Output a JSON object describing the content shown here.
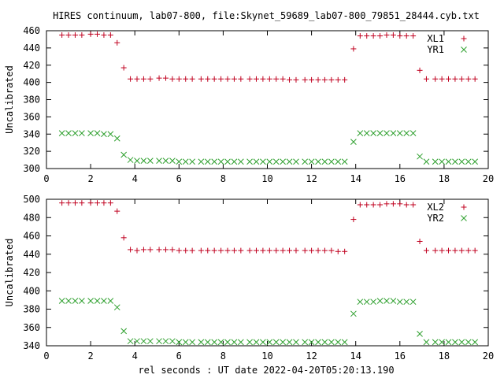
{
  "title": "HIRES continuum, lab07-800, file:Skynet_59689_lab07-800_79851_28444.cyb.txt",
  "xlabel": "rel seconds : UT date 2022-04-20T05:20:13.190",
  "colors": {
    "series_a": "#c0001f",
    "series_b": "#2fa02f"
  },
  "chart_data": [
    {
      "type": "scatter",
      "ylabel": "Uncalibrated",
      "xlim": [
        0,
        20
      ],
      "ylim": [
        300,
        460
      ],
      "xticks": [
        "0",
        "2",
        "4",
        "6",
        "8",
        "10",
        "12",
        "14",
        "16",
        "18",
        "20"
      ],
      "yticks": [
        "300",
        "320",
        "340",
        "360",
        "380",
        "400",
        "420",
        "440",
        "460"
      ],
      "legend_position": "top-right",
      "series": [
        {
          "name": "XL1",
          "marker": "plus",
          "x": [
            0.7,
            1.0,
            1.3,
            1.6,
            2.0,
            2.3,
            2.6,
            2.9,
            3.2,
            3.5,
            3.8,
            4.1,
            4.4,
            4.7,
            5.1,
            5.4,
            5.7,
            6.0,
            6.3,
            6.6,
            7.0,
            7.3,
            7.6,
            7.9,
            8.2,
            8.5,
            8.8,
            9.2,
            9.5,
            9.8,
            10.1,
            10.4,
            10.7,
            11.0,
            11.3,
            11.7,
            12.0,
            12.3,
            12.6,
            12.9,
            13.2,
            13.5,
            13.9,
            14.2,
            14.5,
            14.8,
            15.1,
            15.4,
            15.7,
            16.0,
            16.3,
            16.6,
            16.9,
            17.2,
            17.6,
            17.9,
            18.2,
            18.5,
            18.8,
            19.1,
            19.4
          ],
          "y": [
            455,
            455,
            455,
            455,
            456,
            456,
            455,
            455,
            446,
            417,
            404,
            404,
            404,
            404,
            405,
            405,
            404,
            404,
            404,
            404,
            404,
            404,
            404,
            404,
            404,
            404,
            404,
            404,
            404,
            404,
            404,
            404,
            404,
            403,
            403,
            403,
            403,
            403,
            403,
            403,
            403,
            403,
            439,
            454,
            454,
            454,
            454,
            455,
            455,
            454,
            454,
            454,
            414,
            404,
            404,
            404,
            404,
            404,
            404,
            404,
            404
          ]
        },
        {
          "name": "YR1",
          "marker": "cross",
          "x": [
            0.7,
            1.0,
            1.3,
            1.6,
            2.0,
            2.3,
            2.6,
            2.9,
            3.2,
            3.5,
            3.8,
            4.1,
            4.4,
            4.7,
            5.1,
            5.4,
            5.7,
            6.0,
            6.3,
            6.6,
            7.0,
            7.3,
            7.6,
            7.9,
            8.2,
            8.5,
            8.8,
            9.2,
            9.5,
            9.8,
            10.1,
            10.4,
            10.7,
            11.0,
            11.3,
            11.7,
            12.0,
            12.3,
            12.6,
            12.9,
            13.2,
            13.5,
            13.9,
            14.2,
            14.5,
            14.8,
            15.1,
            15.4,
            15.7,
            16.0,
            16.3,
            16.6,
            16.9,
            17.2,
            17.6,
            17.9,
            18.2,
            18.5,
            18.8,
            19.1,
            19.4
          ],
          "y": [
            341,
            341,
            341,
            341,
            341,
            341,
            340,
            340,
            335,
            316,
            310,
            309,
            309,
            309,
            309,
            309,
            309,
            308,
            308,
            308,
            308,
            308,
            308,
            308,
            308,
            308,
            308,
            308,
            308,
            308,
            308,
            308,
            308,
            308,
            308,
            308,
            308,
            308,
            308,
            308,
            308,
            308,
            331,
            341,
            341,
            341,
            341,
            341,
            341,
            341,
            341,
            341,
            314,
            308,
            308,
            308,
            308,
            308,
            308,
            308,
            308
          ]
        }
      ]
    },
    {
      "type": "scatter",
      "ylabel": "Uncalibrated",
      "xlim": [
        0,
        20
      ],
      "ylim": [
        340,
        500
      ],
      "xticks": [
        "0",
        "2",
        "4",
        "6",
        "8",
        "10",
        "12",
        "14",
        "16",
        "18",
        "20"
      ],
      "yticks": [
        "340",
        "360",
        "380",
        "400",
        "420",
        "440",
        "460",
        "480",
        "500"
      ],
      "legend_position": "top-right",
      "series": [
        {
          "name": "XL2",
          "marker": "plus",
          "x": [
            0.7,
            1.0,
            1.3,
            1.6,
            2.0,
            2.3,
            2.6,
            2.9,
            3.2,
            3.5,
            3.8,
            4.1,
            4.4,
            4.7,
            5.1,
            5.4,
            5.7,
            6.0,
            6.3,
            6.6,
            7.0,
            7.3,
            7.6,
            7.9,
            8.2,
            8.5,
            8.8,
            9.2,
            9.5,
            9.8,
            10.1,
            10.4,
            10.7,
            11.0,
            11.3,
            11.7,
            12.0,
            12.3,
            12.6,
            12.9,
            13.2,
            13.5,
            13.9,
            14.2,
            14.5,
            14.8,
            15.1,
            15.4,
            15.7,
            16.0,
            16.3,
            16.6,
            16.9,
            17.2,
            17.6,
            17.9,
            18.2,
            18.5,
            18.8,
            19.1,
            19.4
          ],
          "y": [
            496,
            496,
            496,
            496,
            496,
            496,
            496,
            496,
            487,
            458,
            445,
            444,
            445,
            445,
            445,
            445,
            445,
            444,
            444,
            444,
            444,
            444,
            444,
            444,
            444,
            444,
            444,
            444,
            444,
            444,
            444,
            444,
            444,
            444,
            444,
            444,
            444,
            444,
            444,
            444,
            443,
            443,
            478,
            494,
            494,
            494,
            494,
            495,
            495,
            495,
            494,
            494,
            454,
            444,
            444,
            444,
            444,
            444,
            444,
            444,
            444
          ]
        },
        {
          "name": "YR2",
          "marker": "cross",
          "x": [
            0.7,
            1.0,
            1.3,
            1.6,
            2.0,
            2.3,
            2.6,
            2.9,
            3.2,
            3.5,
            3.8,
            4.1,
            4.4,
            4.7,
            5.1,
            5.4,
            5.7,
            6.0,
            6.3,
            6.6,
            7.0,
            7.3,
            7.6,
            7.9,
            8.2,
            8.5,
            8.8,
            9.2,
            9.5,
            9.8,
            10.1,
            10.4,
            10.7,
            11.0,
            11.3,
            11.7,
            12.0,
            12.3,
            12.6,
            12.9,
            13.2,
            13.5,
            13.9,
            14.2,
            14.5,
            14.8,
            15.1,
            15.4,
            15.7,
            16.0,
            16.3,
            16.6,
            16.9,
            17.2,
            17.6,
            17.9,
            18.2,
            18.5,
            18.8,
            19.1,
            19.4
          ],
          "y": [
            389,
            389,
            389,
            389,
            389,
            389,
            389,
            389,
            382,
            356,
            345,
            345,
            345,
            345,
            345,
            345,
            345,
            344,
            344,
            344,
            344,
            344,
            344,
            344,
            344,
            344,
            344,
            344,
            344,
            344,
            344,
            344,
            344,
            344,
            344,
            344,
            344,
            344,
            344,
            344,
            344,
            344,
            375,
            388,
            388,
            388,
            389,
            389,
            389,
            388,
            388,
            388,
            353,
            344,
            344,
            344,
            344,
            344,
            344,
            344,
            344
          ]
        }
      ]
    }
  ]
}
